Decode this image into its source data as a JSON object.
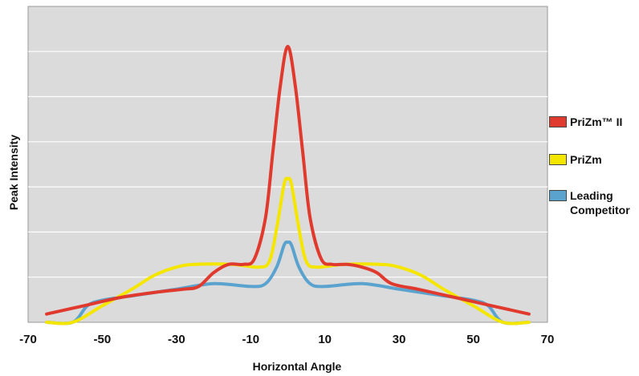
{
  "chart_data": {
    "type": "line",
    "title": "",
    "xlabel": "Horizontal Angle",
    "ylabel": "Peak Intensity",
    "xlim": [
      -70,
      70
    ],
    "ylim": [
      0,
      1
    ],
    "xticks": [
      -70,
      -50,
      -30,
      -10,
      10,
      30,
      50,
      70
    ],
    "x_tick_labels": [
      "-70",
      "-50",
      "-30",
      "-10",
      "10",
      "30",
      "50",
      "70"
    ],
    "grid": "horizontal",
    "legend_position": "right",
    "series": [
      {
        "name": "PriZm™ II",
        "color": "#e0392e",
        "points": [
          [
            -65,
            0.03
          ],
          [
            -55,
            0.06
          ],
          [
            -45,
            0.09
          ],
          [
            -35,
            0.11
          ],
          [
            -28,
            0.12
          ],
          [
            -24,
            0.13
          ],
          [
            -20,
            0.18
          ],
          [
            -16,
            0.21
          ],
          [
            -12,
            0.21
          ],
          [
            -9,
            0.23
          ],
          [
            -6,
            0.38
          ],
          [
            -4,
            0.62
          ],
          [
            -2,
            0.86
          ],
          [
            0,
            1.0
          ],
          [
            2,
            0.86
          ],
          [
            4,
            0.62
          ],
          [
            6,
            0.38
          ],
          [
            9,
            0.23
          ],
          [
            12,
            0.21
          ],
          [
            16,
            0.21
          ],
          [
            20,
            0.2
          ],
          [
            24,
            0.18
          ],
          [
            28,
            0.14
          ],
          [
            35,
            0.12
          ],
          [
            45,
            0.09
          ],
          [
            55,
            0.06
          ],
          [
            65,
            0.03
          ]
        ]
      },
      {
        "name": "PriZm",
        "color": "#f5e600",
        "points": [
          [
            -65,
            0.0
          ],
          [
            -58,
            0.0
          ],
          [
            -50,
            0.06
          ],
          [
            -42,
            0.12
          ],
          [
            -36,
            0.17
          ],
          [
            -30,
            0.2
          ],
          [
            -25,
            0.21
          ],
          [
            -15,
            0.21
          ],
          [
            -8,
            0.2
          ],
          [
            -5,
            0.22
          ],
          [
            -3,
            0.34
          ],
          [
            -1,
            0.5
          ],
          [
            0,
            0.52
          ],
          [
            1,
            0.5
          ],
          [
            3,
            0.34
          ],
          [
            5,
            0.22
          ],
          [
            8,
            0.2
          ],
          [
            15,
            0.21
          ],
          [
            25,
            0.21
          ],
          [
            30,
            0.2
          ],
          [
            36,
            0.17
          ],
          [
            42,
            0.12
          ],
          [
            50,
            0.06
          ],
          [
            58,
            0.0
          ],
          [
            65,
            0.0
          ]
        ]
      },
      {
        "name": "Leading Competitor",
        "color": "#5ba3cf",
        "points": [
          [
            -65,
            0.0
          ],
          [
            -58,
            0.0
          ],
          [
            -54,
            0.06
          ],
          [
            -50,
            0.08
          ],
          [
            -40,
            0.1
          ],
          [
            -30,
            0.12
          ],
          [
            -20,
            0.14
          ],
          [
            -10,
            0.13
          ],
          [
            -6,
            0.14
          ],
          [
            -3,
            0.2
          ],
          [
            -1,
            0.28
          ],
          [
            0,
            0.29
          ],
          [
            1,
            0.28
          ],
          [
            3,
            0.2
          ],
          [
            6,
            0.14
          ],
          [
            10,
            0.13
          ],
          [
            20,
            0.14
          ],
          [
            30,
            0.12
          ],
          [
            40,
            0.1
          ],
          [
            50,
            0.08
          ],
          [
            54,
            0.06
          ],
          [
            58,
            0.0
          ],
          [
            65,
            0.0
          ]
        ]
      }
    ]
  }
}
